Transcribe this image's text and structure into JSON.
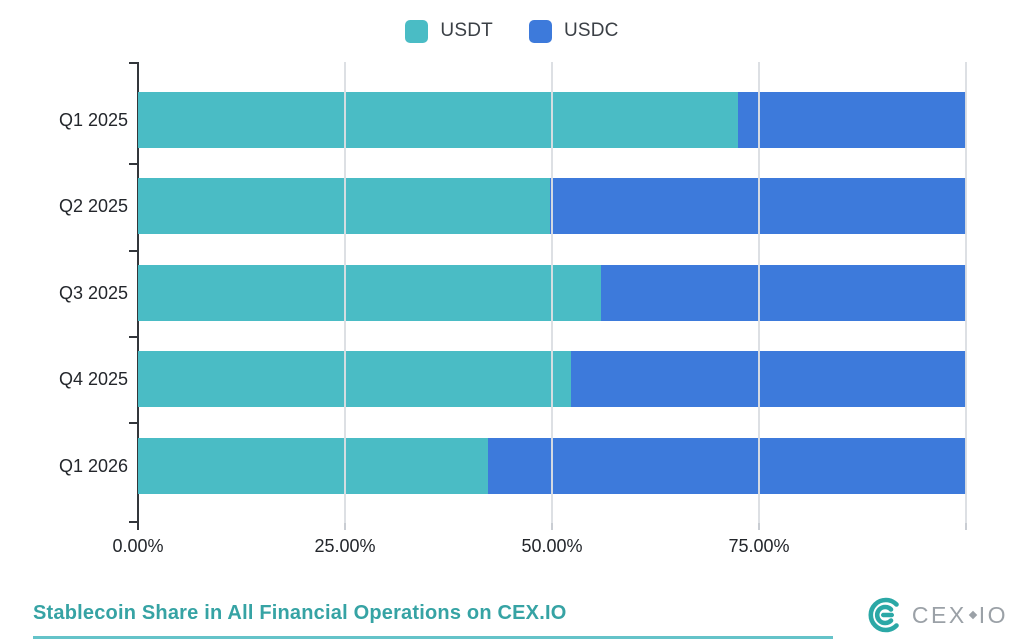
{
  "legend": {
    "items": [
      {
        "label": "USDT",
        "color": "#4ABCC5"
      },
      {
        "label": "USDC",
        "color": "#3D7ADB"
      }
    ]
  },
  "chart_data": {
    "type": "bar",
    "orientation": "horizontal",
    "stacked": true,
    "title": "Stablecoin Share in All Financial Operations on CEX.IO",
    "categories": [
      "Q1 2025",
      "Q2 2025",
      "Q3 2025",
      "Q4 2025",
      "Q1 2026"
    ],
    "series": [
      {
        "name": "USDT",
        "color": "#4ABCC5",
        "values": [
          72.5,
          49.8,
          55.9,
          52.3,
          42.3
        ]
      },
      {
        "name": "USDC",
        "color": "#3D7ADB",
        "values": [
          27.5,
          50.2,
          44.1,
          47.7,
          57.7
        ]
      }
    ],
    "value_unit": "%",
    "xlim": [
      0,
      100
    ],
    "x_tick_labels": [
      "0.00%",
      "25.00%",
      "50.00%",
      "75.00%"
    ],
    "x_tick_values": [
      0,
      25,
      50,
      75
    ],
    "gridline_values": [
      25,
      50,
      75,
      100
    ],
    "grid": true,
    "legend_position": "top"
  },
  "footer": {
    "title": "Stablecoin Share in All Financial Operations on CEX.IO",
    "title_color": "#36a3a4",
    "logo": {
      "text_left": "CEX",
      "text_right": "IO",
      "mark_color": "#2ba8a6",
      "text_color": "#9ba1a7"
    }
  },
  "colors": {
    "axis_line": "#33363b",
    "gridline": "#dbdee3",
    "label_text": "#23262b",
    "legend_text": "#3b4046"
  }
}
